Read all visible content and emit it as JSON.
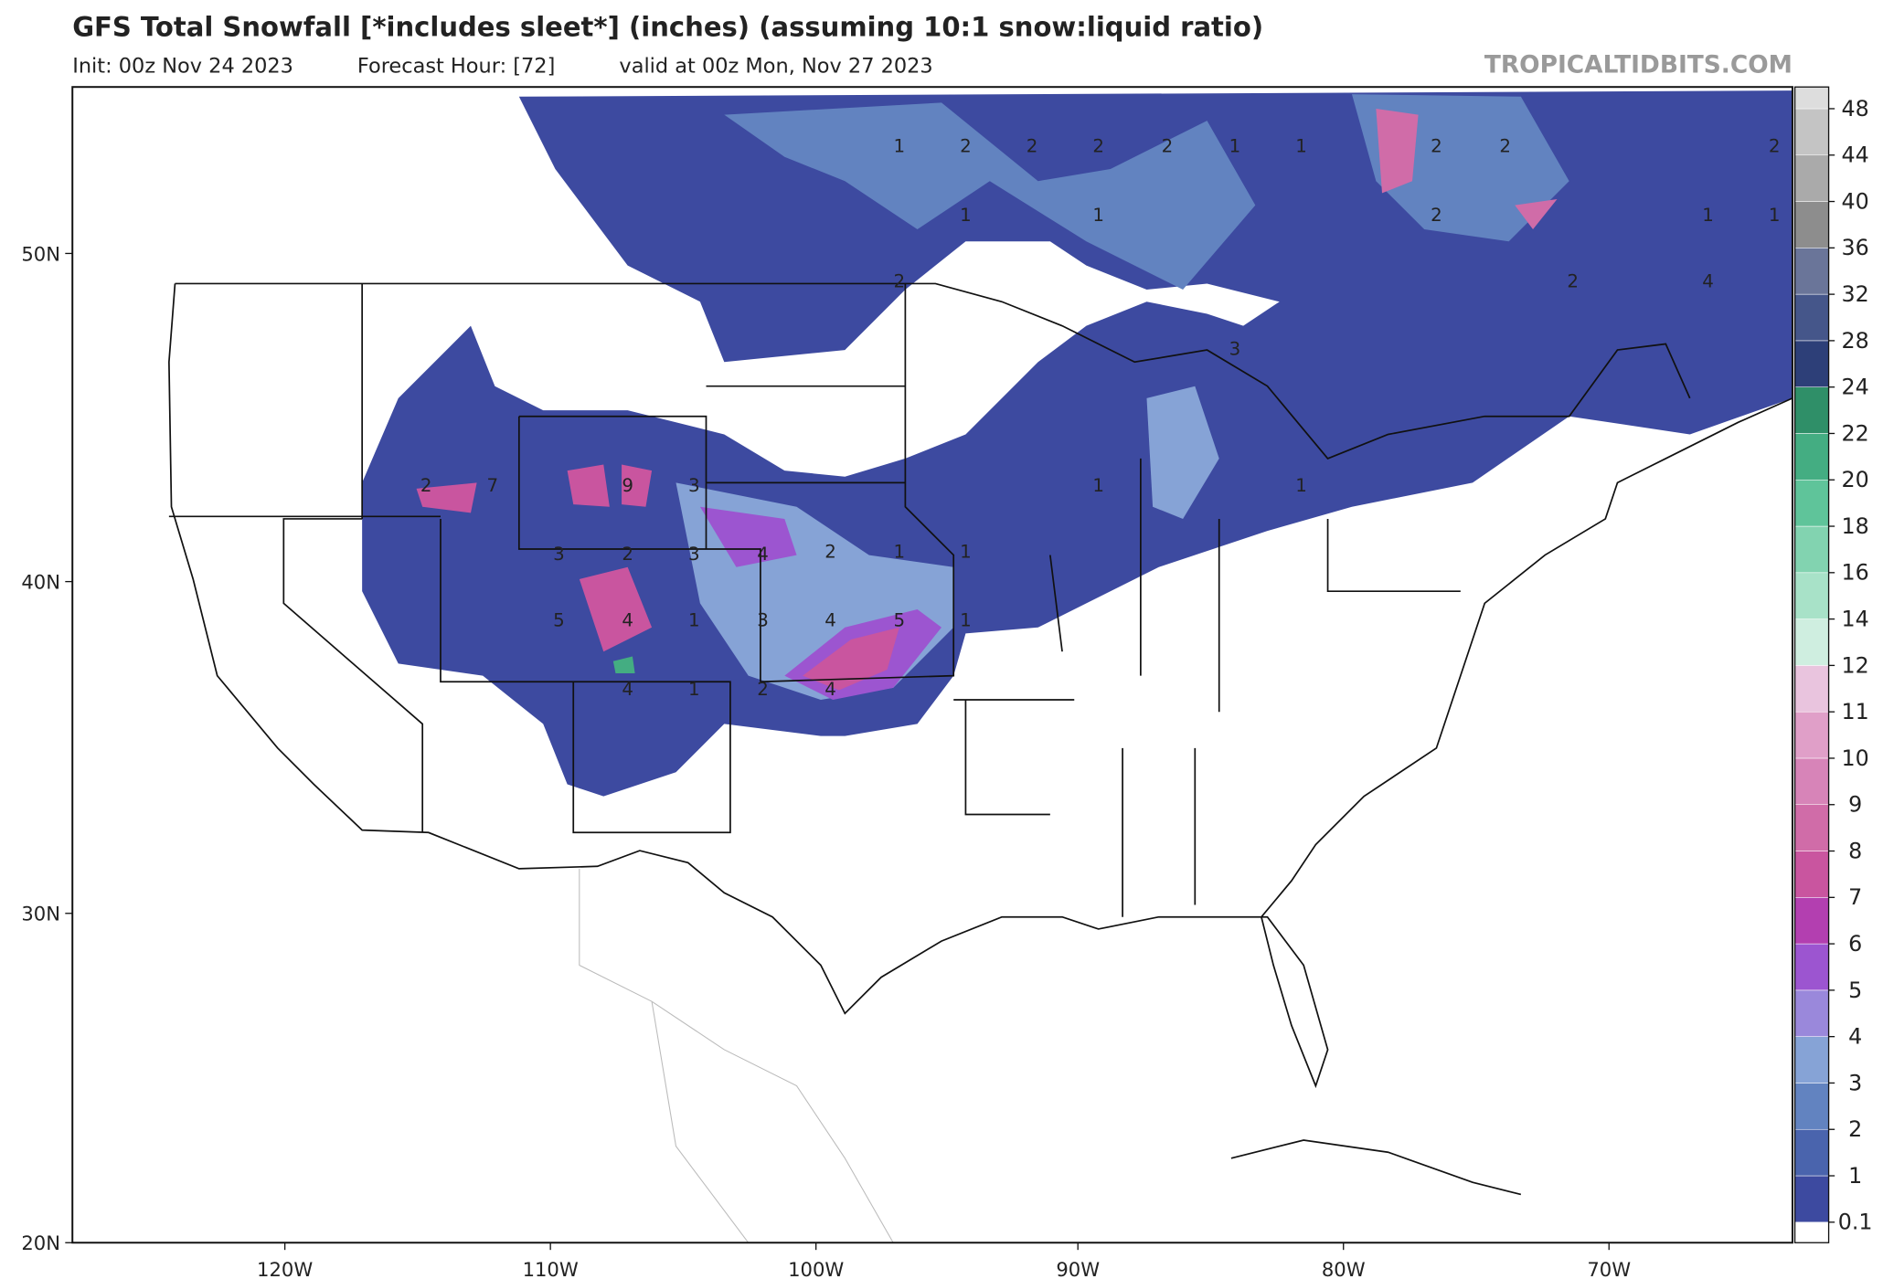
{
  "header": {
    "title": "GFS Total Snowfall [*includes sleet*] (inches) (assuming 10:1 snow:liquid ratio)",
    "init": "Init: 00z Nov 24 2023",
    "forecast_hour": "Forecast Hour: [72]",
    "valid": "valid at 00z Mon, Nov 27 2023",
    "watermark": "TROPICALTIDBITS.COM"
  },
  "map": {
    "lat_labels": [
      "50N",
      "40N",
      "30N",
      "20N"
    ],
    "lon_labels": [
      "120W",
      "110W",
      "100W",
      "90W",
      "80W",
      "70W"
    ],
    "contour_labels": [
      2,
      7,
      9,
      3,
      3,
      2,
      3,
      4,
      2,
      1,
      1,
      5,
      4,
      1,
      3,
      4,
      5,
      1,
      4,
      1,
      2,
      4,
      1,
      2,
      2,
      2,
      2,
      1,
      1,
      2,
      2,
      2,
      1,
      1,
      2,
      1,
      1,
      2,
      2,
      4,
      3,
      1,
      1
    ]
  },
  "colorbar": {
    "levels": [
      0.1,
      1,
      2,
      3,
      4,
      5,
      6,
      7,
      8,
      9,
      10,
      11,
      12,
      14,
      16,
      18,
      20,
      22,
      24,
      28,
      32,
      36,
      40,
      44,
      48
    ],
    "colors": [
      "#3d4aa0",
      "#4a64ad",
      "#6283c0",
      "#86a3d6",
      "#9a88db",
      "#9c55d0",
      "#b33fb0",
      "#c9559f",
      "#d06ca8",
      "#d784b8",
      "#e09fc8",
      "#e9c4de",
      "#cfeee0",
      "#a8e2c8",
      "#82d3b0",
      "#5fc49a",
      "#44ad82",
      "#2f8f68",
      "#2d3f78",
      "#45568a",
      "#6a7599",
      "#8d8d8d",
      "#aaaaaa",
      "#c4c4c4",
      "#dddddd"
    ]
  }
}
